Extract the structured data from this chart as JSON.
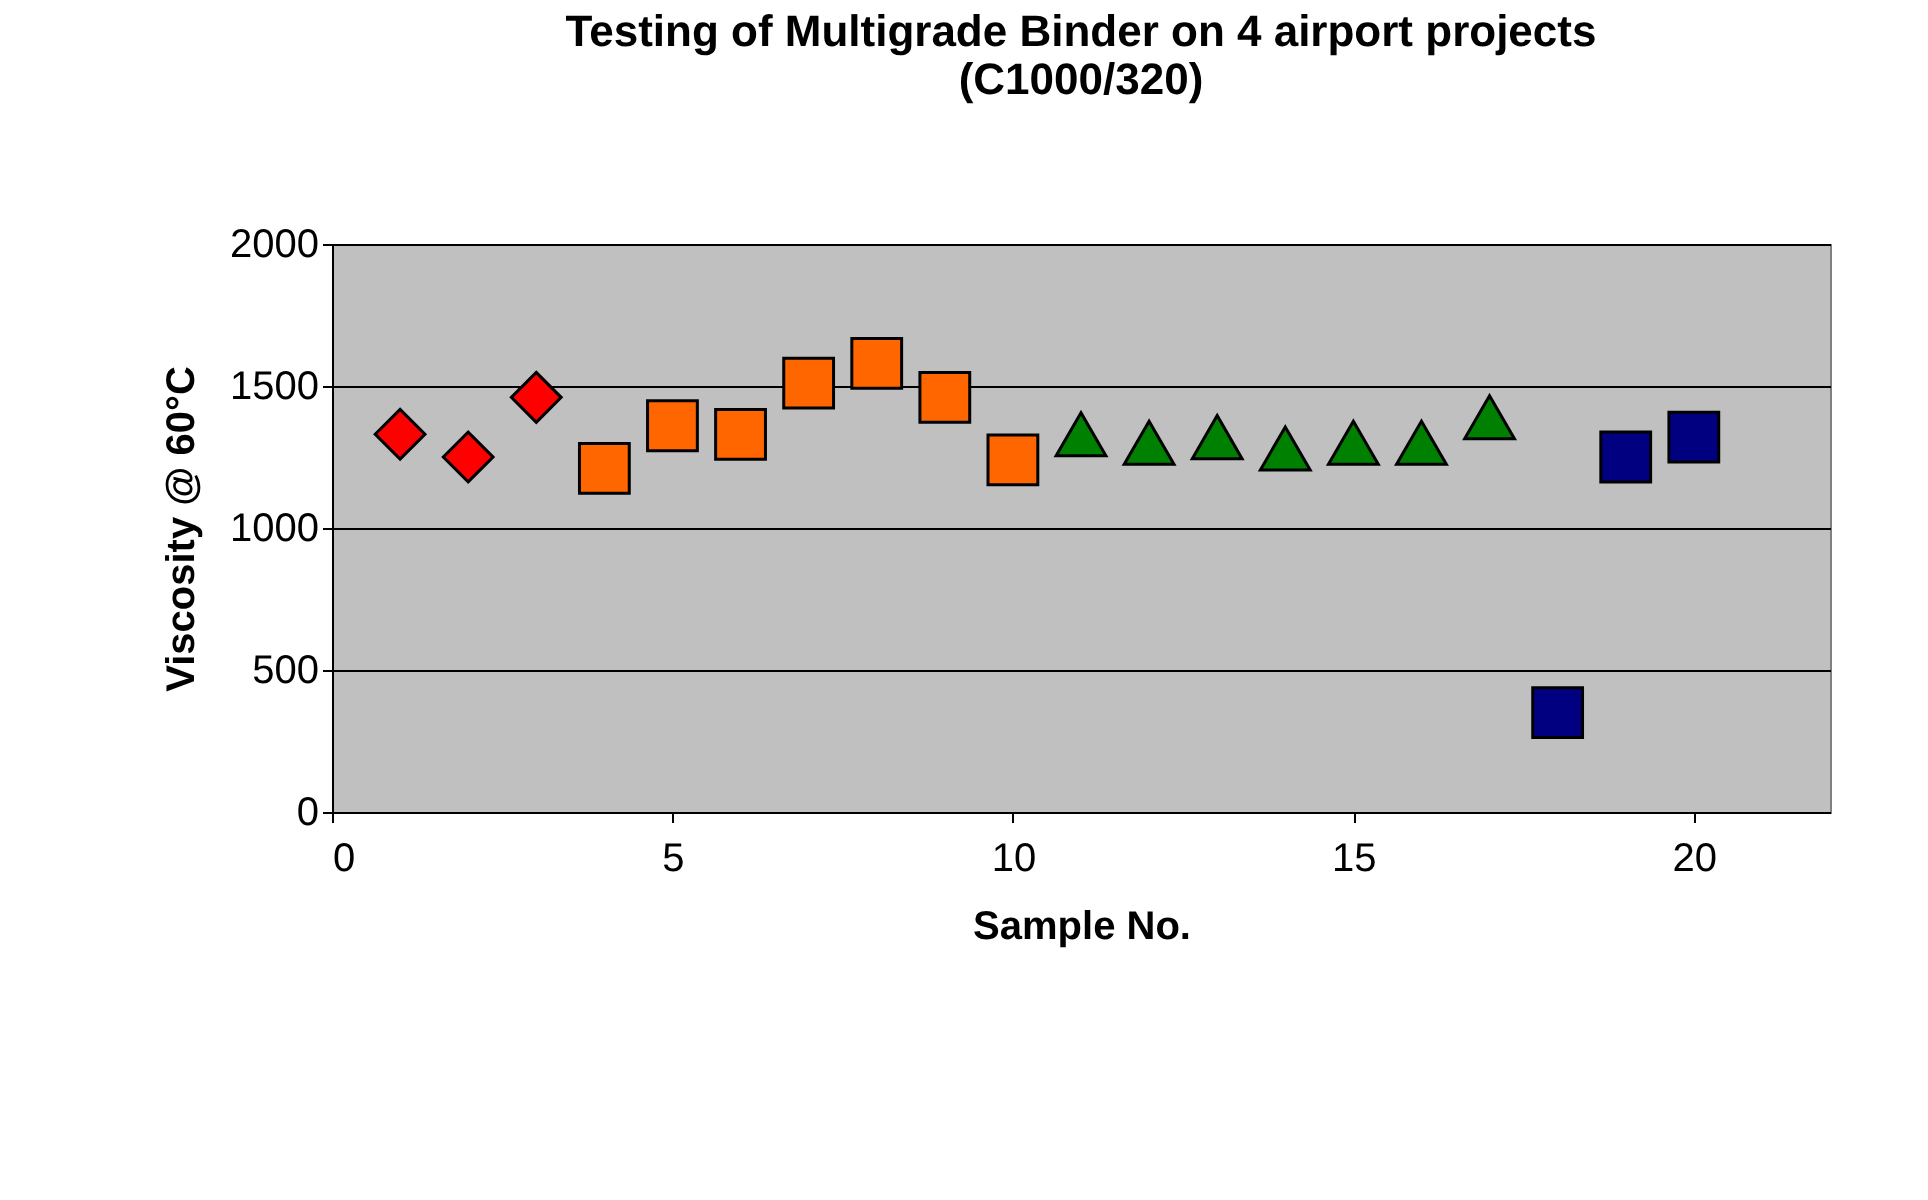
{
  "chart_data": {
    "type": "scatter",
    "title": [
      "Testing of Multigrade Binder on 4 airport projects",
      "(C1000/320)"
    ],
    "xlabel": "Sample No.",
    "ylabel": "Viscosity @ 60°C",
    "xlim": [
      0,
      22
    ],
    "xticks": [
      0,
      5,
      10,
      15,
      20
    ],
    "ylim": [
      0,
      2000
    ],
    "yticks": [
      0,
      500,
      1000,
      1500,
      2000
    ],
    "grid": "y",
    "series": [
      {
        "color": "#ff0000",
        "marker": "diamond",
        "x": [
          1,
          2,
          3
        ],
        "values": [
          1330,
          1250,
          1460
        ]
      },
      {
        "color": "#ff6600",
        "marker": "square",
        "x": [
          4,
          5,
          6,
          7,
          8,
          9,
          10
        ],
        "values": [
          1210,
          1360,
          1330,
          1510,
          1580,
          1460,
          1240
        ]
      },
      {
        "color": "#008000",
        "marker": "triangle",
        "x": [
          11,
          12,
          13,
          14,
          15,
          16,
          17
        ],
        "values": [
          1330,
          1300,
          1320,
          1280,
          1300,
          1300,
          1390
        ]
      },
      {
        "color": "#000080",
        "marker": "square",
        "x": [
          18,
          19,
          20
        ],
        "values": [
          350,
          1250,
          1320
        ]
      }
    ]
  }
}
